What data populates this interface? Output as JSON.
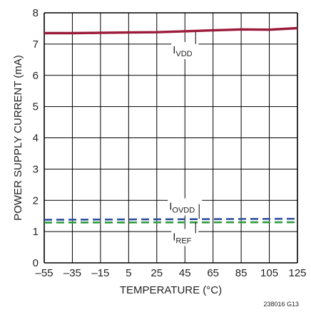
{
  "chart_data": {
    "type": "line",
    "xlabel": "TEMPERATURE (°C)",
    "ylabel": "POWER SUPPLY CURRENT (mA)",
    "xlim": [
      -55,
      125
    ],
    "ylim": [
      0,
      8
    ],
    "grid": true,
    "x_ticks": [
      "–55",
      "–35",
      "–15",
      "5",
      "25",
      "45",
      "65",
      "85",
      "105",
      "125"
    ],
    "y_ticks": [
      "0",
      "1",
      "2",
      "3",
      "4",
      "5",
      "6",
      "7",
      "8"
    ],
    "series": [
      {
        "name": "IVDD",
        "label_main": "I",
        "label_sub": "VDD",
        "color": "#9b1b3b",
        "style": "solid",
        "x": [
          -55,
          -35,
          -15,
          5,
          25,
          45,
          65,
          85,
          105,
          125
        ],
        "y": [
          7.35,
          7.35,
          7.36,
          7.37,
          7.38,
          7.41,
          7.44,
          7.47,
          7.46,
          7.51
        ]
      },
      {
        "name": "IOVDD",
        "label_main": "I",
        "label_sub": "OVDD",
        "color": "#2e4f9e",
        "style": "dashed",
        "x": [
          -55,
          125
        ],
        "y": [
          1.38,
          1.41
        ]
      },
      {
        "name": "IREF",
        "label_main": "I",
        "label_sub": "REF",
        "color": "#2f9b3d",
        "style": "dashed",
        "x": [
          -55,
          125
        ],
        "y": [
          1.29,
          1.3
        ]
      }
    ],
    "figure_code": "238016 G13"
  }
}
